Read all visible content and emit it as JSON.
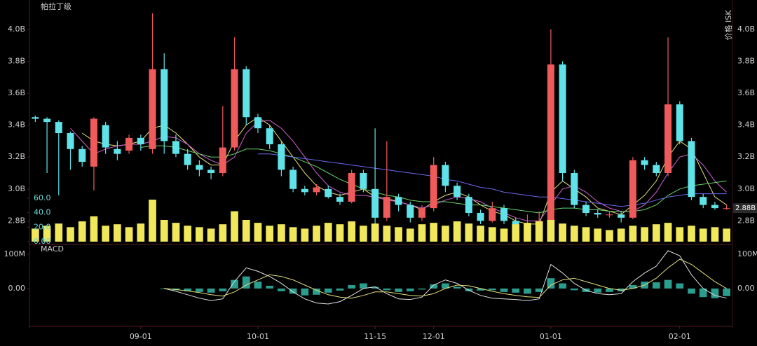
{
  "chart_data": [
    {
      "type": "candlestick",
      "title": "帕拉丁级",
      "y_axis_label": "价格 ISK",
      "categories": [
        null,
        null,
        null,
        null,
        null,
        null,
        null,
        null,
        null,
        "09-01",
        null,
        null,
        null,
        null,
        null,
        null,
        null,
        null,
        null,
        "10-01",
        null,
        null,
        null,
        null,
        null,
        null,
        null,
        null,
        null,
        "11-15",
        null,
        null,
        null,
        null,
        "12-01",
        null,
        null,
        null,
        null,
        null,
        null,
        null,
        null,
        null,
        "01-01",
        null,
        null,
        null,
        null,
        null,
        null,
        null,
        null,
        null,
        null,
        "02-01",
        null,
        null,
        null,
        null
      ],
      "open": [
        3.45,
        3.44,
        3.42,
        3.35,
        3.25,
        3.14,
        3.4,
        3.25,
        3.24,
        3.32,
        3.25,
        3.75,
        3.3,
        3.22,
        3.15,
        3.12,
        3.1,
        3.26,
        3.75,
        3.45,
        3.38,
        3.28,
        3.12,
        3.0,
        2.98,
        3.0,
        2.95,
        2.92,
        3.1,
        3.0,
        2.82,
        2.95,
        2.9,
        2.82,
        2.88,
        3.15,
        3.02,
        2.95,
        2.85,
        2.8,
        2.88,
        2.8,
        2.75,
        2.78,
        2.8,
        3.78,
        3.1,
        2.9,
        2.85,
        2.84,
        2.84,
        2.82,
        3.18,
        3.15,
        3.1,
        3.53,
        3.3,
        2.95,
        2.9,
        2.88
      ],
      "high": [
        3.46,
        3.45,
        3.43,
        3.36,
        3.27,
        3.45,
        3.42,
        3.3,
        3.34,
        3.34,
        4.1,
        3.85,
        3.34,
        3.25,
        3.18,
        3.14,
        3.52,
        3.95,
        3.77,
        3.47,
        3.4,
        3.3,
        3.14,
        3.02,
        3.03,
        3.02,
        2.97,
        3.12,
        3.12,
        3.38,
        3.3,
        2.97,
        2.92,
        2.9,
        3.2,
        3.17,
        3.04,
        2.97,
        2.87,
        2.92,
        2.9,
        2.82,
        2.84,
        2.86,
        4.0,
        3.8,
        3.12,
        2.92,
        2.87,
        2.86,
        2.86,
        3.2,
        3.2,
        3.17,
        3.95,
        3.55,
        3.32,
        2.97,
        2.92,
        2.9
      ],
      "low": [
        3.42,
        3.1,
        2.96,
        3.12,
        3.14,
        2.99,
        3.22,
        3.18,
        3.22,
        3.24,
        3.22,
        3.22,
        3.2,
        3.12,
        3.08,
        3.06,
        3.08,
        3.24,
        3.4,
        3.35,
        3.25,
        3.08,
        2.98,
        2.96,
        2.96,
        2.94,
        2.9,
        2.91,
        2.98,
        2.75,
        2.8,
        2.86,
        2.79,
        2.8,
        2.86,
        2.98,
        2.93,
        2.83,
        2.78,
        2.79,
        2.78,
        2.72,
        2.74,
        2.76,
        2.78,
        3.05,
        2.88,
        2.83,
        2.82,
        2.82,
        2.79,
        2.81,
        3.12,
        3.08,
        3.08,
        3.28,
        2.93,
        2.88,
        2.87,
        2.87
      ],
      "close": [
        3.44,
        3.42,
        3.35,
        3.25,
        3.17,
        3.44,
        3.26,
        3.22,
        3.32,
        3.28,
        3.75,
        3.3,
        3.22,
        3.15,
        3.12,
        3.1,
        3.26,
        3.75,
        3.45,
        3.38,
        3.28,
        3.12,
        3.0,
        2.98,
        3.01,
        2.95,
        2.92,
        3.1,
        3.0,
        2.82,
        2.95,
        2.9,
        2.82,
        2.88,
        3.15,
        3.02,
        2.95,
        2.85,
        2.8,
        2.88,
        2.8,
        2.75,
        2.78,
        2.8,
        3.78,
        3.1,
        2.9,
        2.85,
        2.84,
        2.84,
        2.82,
        3.18,
        3.15,
        3.1,
        3.53,
        3.3,
        2.95,
        2.9,
        2.88,
        2.88
      ],
      "up_color": "#ef5a5a",
      "down_color": "#5fe3e8",
      "lines": [
        {
          "color": "#e6df7a",
          "values": [
            null,
            null,
            null,
            null,
            3.35,
            3.3,
            3.28,
            3.27,
            3.28,
            3.3,
            3.38,
            3.4,
            3.35,
            3.28,
            3.2,
            3.15,
            3.15,
            3.3,
            3.4,
            3.45,
            3.4,
            3.3,
            3.2,
            3.1,
            3.02,
            2.98,
            2.96,
            2.98,
            3.0,
            2.95,
            2.94,
            2.92,
            2.9,
            2.87,
            2.92,
            2.96,
            2.98,
            2.95,
            2.9,
            2.86,
            2.84,
            2.8,
            2.78,
            2.78,
            2.98,
            3.05,
            3.0,
            2.95,
            2.88,
            2.86,
            2.84,
            2.9,
            2.96,
            3.05,
            3.2,
            3.3,
            3.25,
            3.1,
            2.95,
            2.9
          ]
        },
        {
          "color": "#d25fd2",
          "values": [
            null,
            null,
            null,
            3.38,
            3.3,
            3.22,
            3.25,
            3.27,
            3.28,
            3.28,
            3.3,
            3.33,
            3.32,
            3.28,
            3.22,
            3.18,
            3.15,
            3.2,
            3.35,
            3.42,
            3.43,
            3.38,
            3.3,
            3.2,
            3.1,
            3.02,
            2.98,
            2.96,
            2.96,
            2.95,
            2.93,
            2.92,
            2.9,
            2.88,
            2.9,
            2.93,
            2.95,
            2.94,
            2.92,
            2.88,
            2.85,
            2.82,
            2.8,
            2.8,
            2.9,
            3.0,
            3.02,
            2.98,
            2.92,
            2.88,
            2.86,
            2.86,
            2.9,
            2.98,
            3.1,
            3.2,
            3.22,
            3.15,
            3.05,
            2.98
          ]
        },
        {
          "color": "#6bd36b",
          "values": [
            null,
            null,
            null,
            null,
            null,
            null,
            null,
            null,
            null,
            3.26,
            3.27,
            3.27,
            3.26,
            3.24,
            3.22,
            3.2,
            3.2,
            3.22,
            3.25,
            3.25,
            3.24,
            3.22,
            3.2,
            3.17,
            3.14,
            3.1,
            3.06,
            3.03,
            3.0,
            2.98,
            2.96,
            2.95,
            2.93,
            2.92,
            2.92,
            2.92,
            2.91,
            2.9,
            2.9,
            2.89,
            2.88,
            2.87,
            2.86,
            2.85,
            2.87,
            2.88,
            2.88,
            2.87,
            2.87,
            2.86,
            2.86,
            2.86,
            2.87,
            2.9,
            2.96,
            3.0,
            3.02,
            3.03,
            3.04,
            3.05
          ]
        },
        {
          "color": "#6a6af0",
          "values": [
            null,
            null,
            null,
            null,
            null,
            null,
            null,
            null,
            null,
            null,
            null,
            null,
            null,
            null,
            null,
            null,
            null,
            null,
            null,
            3.22,
            3.22,
            3.21,
            3.2,
            3.19,
            3.18,
            3.17,
            3.16,
            3.15,
            3.14,
            3.13,
            3.12,
            3.11,
            3.1,
            3.09,
            3.08,
            3.06,
            3.05,
            3.03,
            3.01,
            3.0,
            2.98,
            2.97,
            2.96,
            2.95,
            2.95,
            2.94,
            2.93,
            2.92,
            2.91,
            2.9,
            2.89,
            2.9,
            2.91,
            2.93,
            2.95,
            2.96,
            2.97,
            2.97,
            2.97,
            2.97
          ]
        }
      ],
      "ylim": [
        2.67,
        4.14
      ],
      "yticks": [
        {
          "value": 2.8,
          "label": "2.8B"
        },
        {
          "value": 3.0,
          "label": "3.0B"
        },
        {
          "value": 3.2,
          "label": "3.2B"
        },
        {
          "value": 3.4,
          "label": "3.4B"
        },
        {
          "value": 3.6,
          "label": "3.6B"
        },
        {
          "value": 3.8,
          "label": "3.8B"
        },
        {
          "value": 4.0,
          "label": "4.0B"
        }
      ],
      "price_marker": {
        "value": 2.88,
        "label": "2.88B"
      }
    },
    {
      "type": "bar",
      "color": "#f0e85a",
      "values": [
        18,
        22,
        25,
        20,
        28,
        35,
        22,
        24,
        20,
        25,
        58,
        30,
        26,
        22,
        20,
        18,
        24,
        42,
        30,
        26,
        22,
        24,
        20,
        18,
        22,
        26,
        24,
        28,
        22,
        25,
        22,
        20,
        18,
        24,
        26,
        22,
        28,
        25,
        22,
        20,
        18,
        24,
        26,
        28,
        30,
        25,
        22,
        20,
        18,
        16,
        18,
        22,
        20,
        24,
        26,
        20,
        22,
        18,
        20,
        18
      ],
      "ylim": [
        0,
        60
      ],
      "yticks": [
        {
          "value": 0,
          "label": "0.00"
        },
        {
          "value": 20,
          "label": "20.0"
        },
        {
          "value": 40,
          "label": "40.0"
        },
        {
          "value": 60,
          "label": "60.0"
        }
      ]
    },
    {
      "type": "macd",
      "title": "MACD",
      "histogram": {
        "color": "#2a9d8f",
        "values": [
          null,
          null,
          null,
          null,
          null,
          null,
          null,
          null,
          null,
          null,
          null,
          -2,
          -5,
          -8,
          -10,
          -12,
          -8,
          25,
          35,
          20,
          8,
          -8,
          -15,
          -20,
          -18,
          -12,
          -6,
          10,
          15,
          5,
          -5,
          -10,
          -8,
          -3,
          12,
          15,
          5,
          -8,
          -6,
          -5,
          -10,
          -12,
          -15,
          -10,
          30,
          15,
          -5,
          -10,
          -12,
          -10,
          -8,
          10,
          20,
          18,
          25,
          15,
          -15,
          -25,
          -28,
          -22
        ]
      },
      "lines": [
        {
          "color": "#e0e0e0",
          "values": [
            null,
            null,
            null,
            null,
            null,
            null,
            null,
            null,
            null,
            null,
            null,
            0,
            -8,
            -18,
            -28,
            -35,
            -30,
            20,
            60,
            50,
            35,
            15,
            -10,
            -30,
            -42,
            -45,
            -38,
            -20,
            0,
            5,
            -15,
            -30,
            -32,
            -25,
            10,
            25,
            15,
            -5,
            -20,
            -28,
            -30,
            -32,
            -35,
            -30,
            70,
            45,
            15,
            -5,
            -15,
            -18,
            -15,
            20,
            45,
            65,
            110,
            95,
            40,
            0,
            -20,
            -28
          ]
        },
        {
          "color": "#e6df7a",
          "values": [
            null,
            null,
            null,
            null,
            null,
            null,
            null,
            null,
            null,
            null,
            null,
            0,
            -3,
            -7,
            -12,
            -18,
            -22,
            -10,
            10,
            25,
            40,
            35,
            25,
            10,
            -5,
            -18,
            -25,
            -28,
            -20,
            -10,
            -10,
            -15,
            -20,
            -22,
            -15,
            0,
            10,
            8,
            0,
            -8,
            -15,
            -20,
            -24,
            -26,
            10,
            25,
            30,
            20,
            10,
            0,
            -5,
            0,
            10,
            30,
            60,
            85,
            70,
            45,
            20,
            0
          ]
        }
      ],
      "ylim": [
        -108,
        126
      ],
      "yticks": [
        {
          "value": 0,
          "label": "0.00"
        },
        {
          "value": 100,
          "label": "100M"
        }
      ]
    }
  ]
}
